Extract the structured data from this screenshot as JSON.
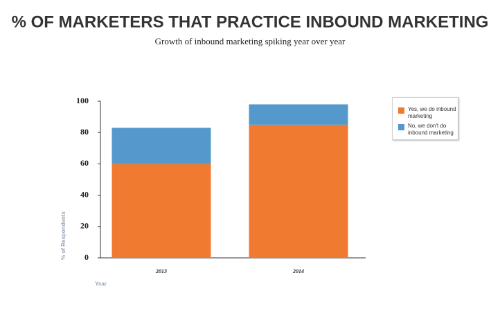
{
  "chart_data": {
    "type": "stacked-bar",
    "title": "% OF MARKETERS THAT PRACTICE INBOUND MARKETING",
    "subtitle": "Growth of inbound marketing spiking year over year",
    "x_label": "Year",
    "y_label": "% of Respondents",
    "categories": [
      "2013",
      "2014"
    ],
    "series": [
      {
        "name": "Yes, we do inbound marketing",
        "color": "#f07a30",
        "values": [
          60,
          85
        ]
      },
      {
        "name": "No, we don't do inbound marketing",
        "color": "#5599cc",
        "values": [
          23,
          13
        ]
      }
    ],
    "ylim": [
      0,
      100
    ],
    "yticks": [
      0,
      20,
      40,
      60,
      80,
      100
    ],
    "grid": false
  }
}
